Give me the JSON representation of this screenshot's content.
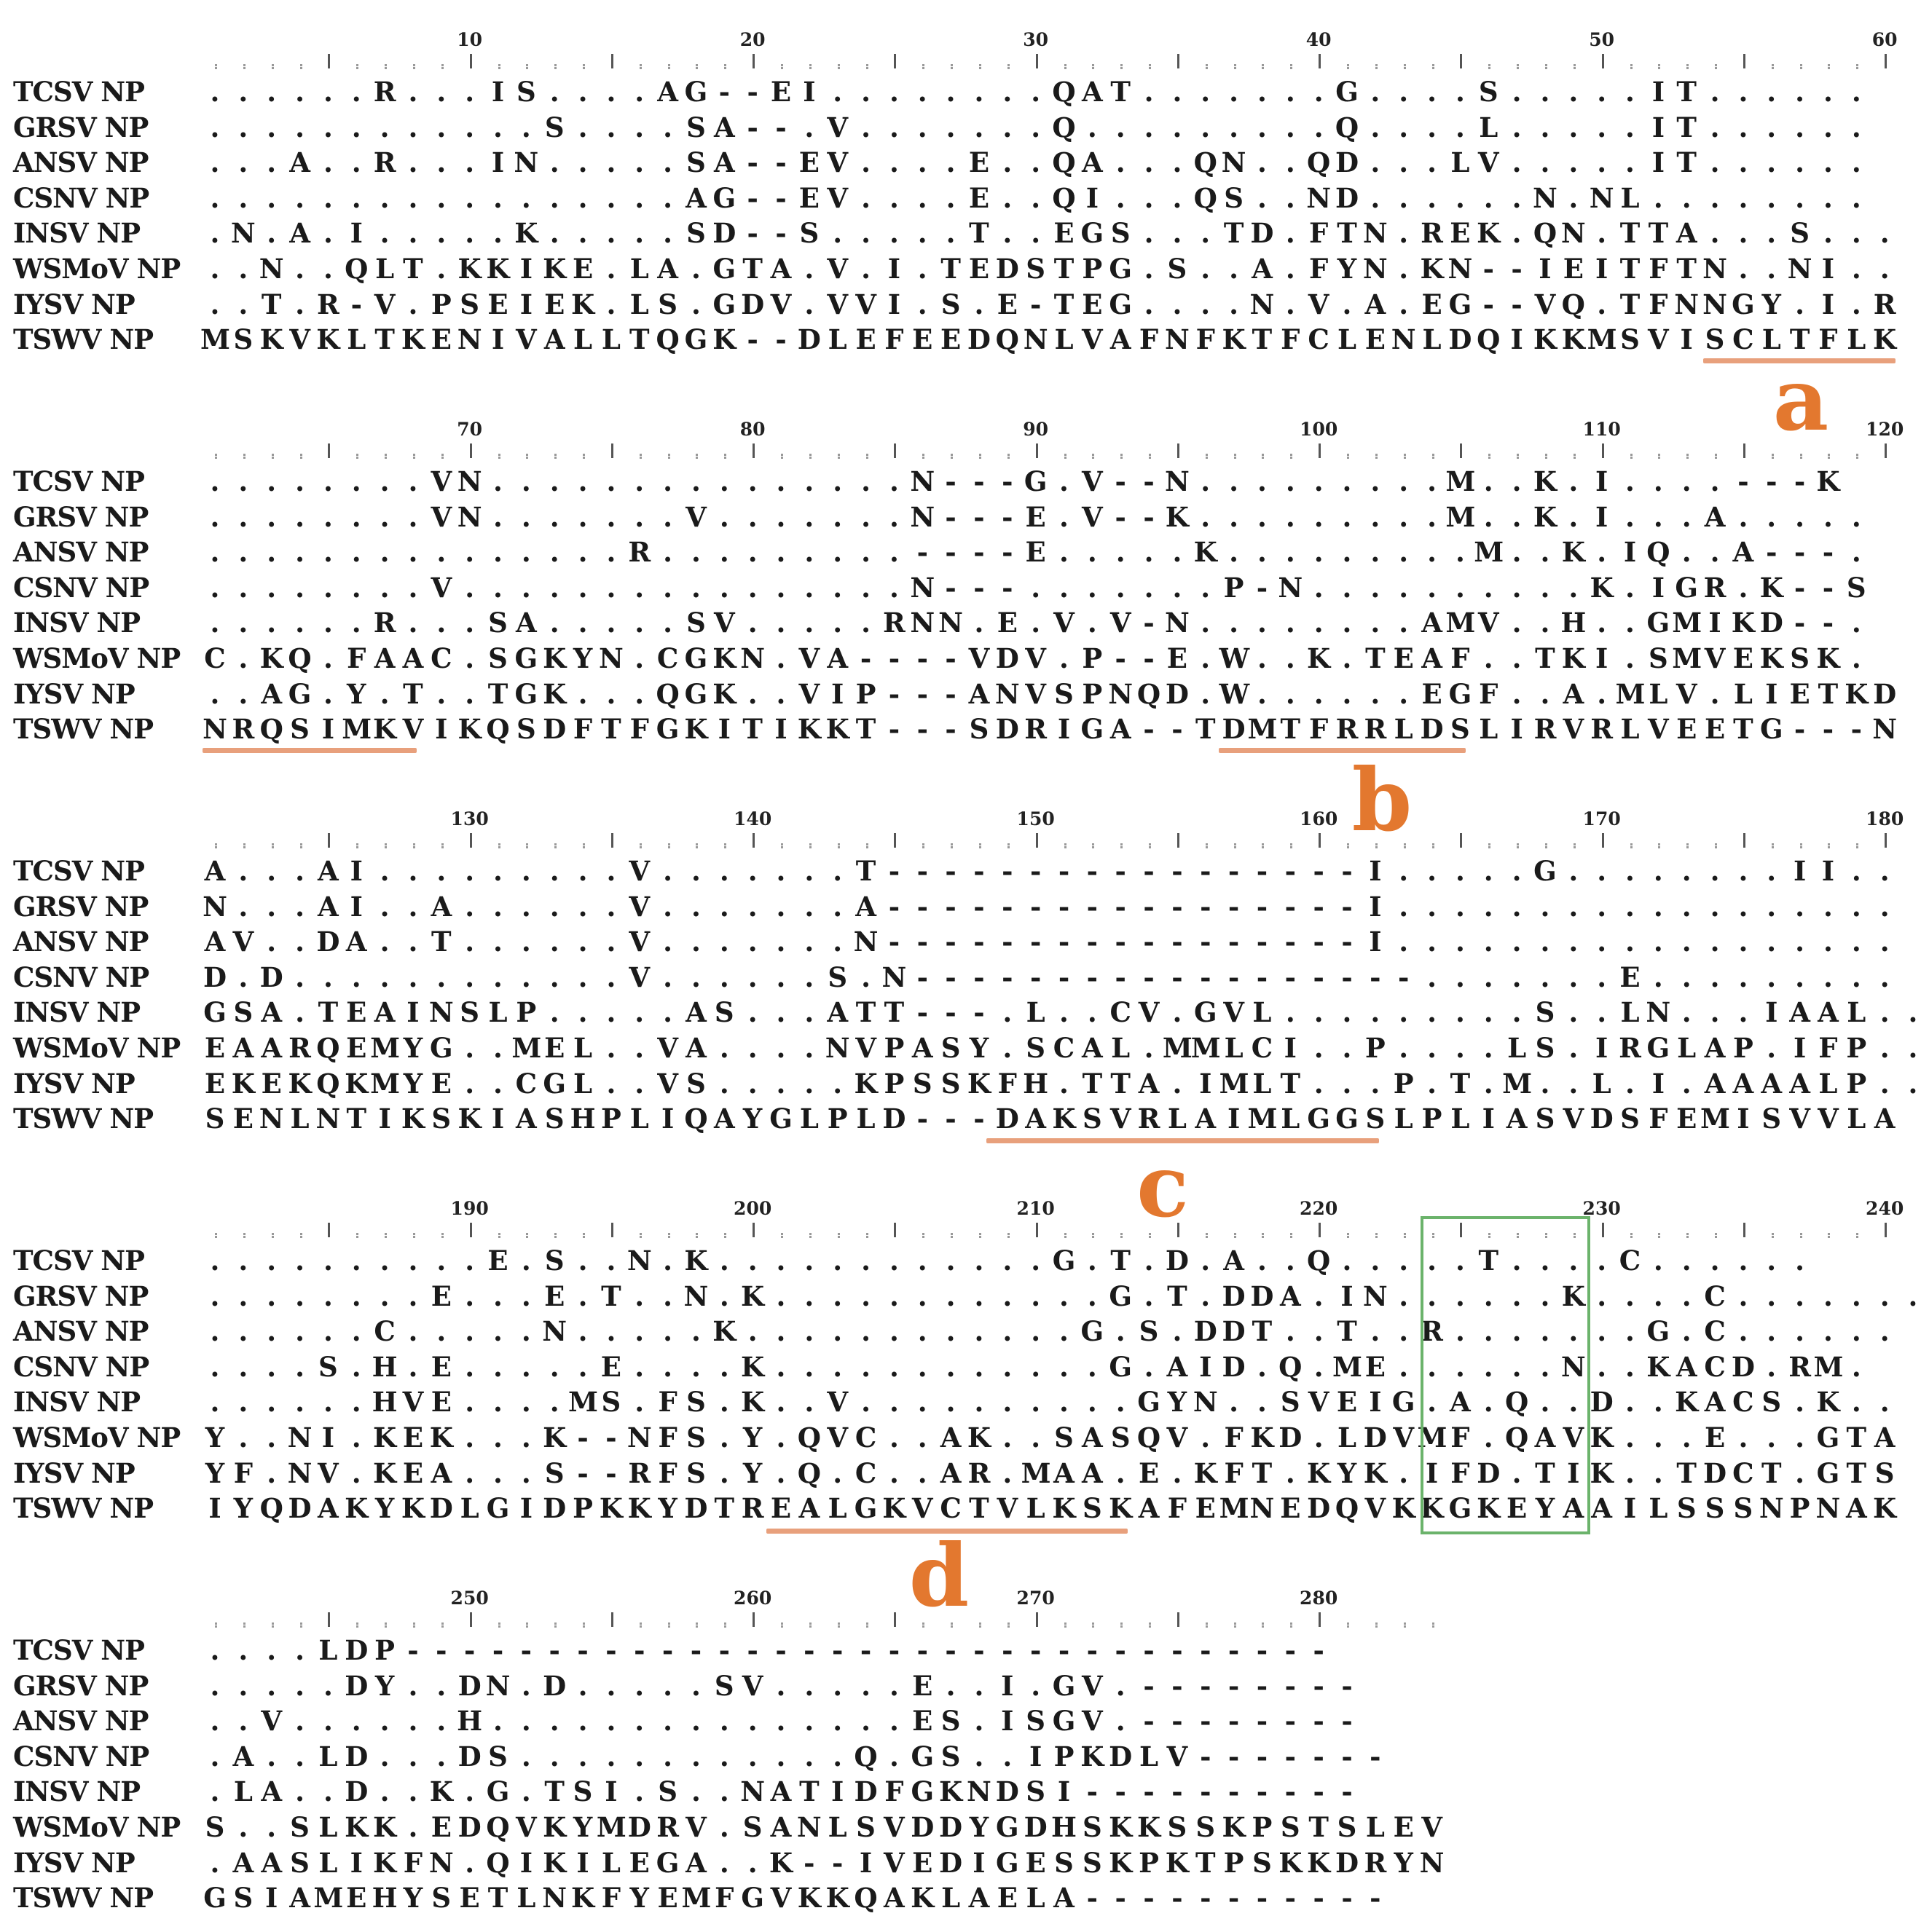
{
  "blocks": [
    {
      "ruler_numbers": [
        "10",
        "20",
        "30",
        "40",
        "50",
        "60"
      ],
      "rows": [
        {
          "label": "TCSV NP",
          "seq": "......R...IS....AG--EI........QAT.......G....S.....IT......"
        },
        {
          "label": "GRSV NP",
          "seq": "............S....SA--.V.......Q.........Q....L.....IT......"
        },
        {
          "label": "ANSV NP",
          "seq": "...A..R...IN.....SA--EV....E..QA...QN..QD...LV.....IT......"
        },
        {
          "label": "CSNV NP",
          "seq": ".................AG--EV....E..QI...QS..ND......N.NL........"
        },
        {
          "label": "INSV NP",
          "seq": ".N.A.I.....K.....SD--S.....T..EGS...TD.FTN.REK.QN.TTA...S..."
        },
        {
          "label": "WSMoV NP",
          "seq": "..N..QLT.KKIKE.LA.GTA.V.I.TEDSTPG.S..A.FYN.KN--IEITFTN..NI.."
        },
        {
          "label": "IYSV NP",
          "seq": "..T.R-V.PSEIEK.LS.GDV.VVI.S.E-TEG....N.V.A.EG--VQ.TFNNGY.I.R"
        },
        {
          "label": "TSWV NP",
          "seq": "MSKVKLTKENIVALLTQGK--DLEFEEDQNLVAFNFKTFCLENLDQIKKMSVISCLTFLK"
        }
      ],
      "motif": {
        "letter": "a"
      }
    },
    {
      "ruler_numbers": [
        "70",
        "80",
        "90",
        "100",
        "110",
        "120"
      ],
      "rows": [
        {
          "label": "TCSV NP",
          "seq": "........VN...............N---G.V--N.........M..K.I....---K"
        },
        {
          "label": "GRSV NP",
          "seq": "........VN.......V.......N---E.V--K.........M..K.I...A....."
        },
        {
          "label": "ANSV NP",
          "seq": "...............R.........----E.....K.........M..K.IQ..A---."
        },
        {
          "label": "CSNV NP",
          "seq": "........V................N---.......P-N..........K.IGR.K--S"
        },
        {
          "label": "INSV NP",
          "seq": "......R...SA.....SV.....RNN.E.V.V-N........AMV..H..GMIKD--."
        },
        {
          "label": "WSMoV NP",
          "seq": "C.KQ.FAAC.SGKYN.CGKN.VA----VDV.P--E.W..K.TEAF..TKI.SMVEKSK."
        },
        {
          "label": "IYSV NP",
          "seq": "..AG.Y.T..TGK...QGK..VIP---ANVSPNQD.W......EGF..A.MLV.LIETKD"
        },
        {
          "label": "TSWV NP",
          "seq": "NRQSIMKVIKQSDFTFGKITIKKT---SDRIGA--TDMTFRRLDSLIRVRLVEETG---N"
        }
      ],
      "motif": {
        "letter": "b"
      }
    },
    {
      "ruler_numbers": [
        "130",
        "140",
        "150",
        "160",
        "170",
        "180"
      ],
      "rows": [
        {
          "label": "TCSV NP",
          "seq": "A...AI.........V.......T-----------------I.....G........II.."
        },
        {
          "label": "GRSV NP",
          "seq": "N...AI..A......V.......A-----------------I.................."
        },
        {
          "label": "ANSV NP",
          "seq": "AV..DA..T......V.......N-----------------I.................."
        },
        {
          "label": "CSNV NP",
          "seq": "D.D............V......S.N------------------.......E........."
        },
        {
          "label": "INSV NP",
          "seq": "GSA.TEAINSLP.....AS...ATT---.L..CV.GVL.........S..LN...IAAL..."
        },
        {
          "label": "WSMoV NP",
          "seq": "EAARQEMYG..MEL..VA....NVPASY.SCAL.MMLCI..P....LS.IRGLAP.IFP.."
        },
        {
          "label": "IYSV NP",
          "seq": "EKEKQKMYE..CGL..VS.....KPSSKFH.TTA.IMLT...P.T.M..L.I.AAAALP.."
        },
        {
          "label": "TSWV NP",
          "seq": "SENLNTIKSKIASHPLIQAYGLPLD---DAKSVRLAIMLGGSLPLIASVDSFEMISVVLA"
        }
      ],
      "motif": {
        "letter": "c"
      }
    },
    {
      "ruler_numbers": [
        "190",
        "200",
        "210",
        "220",
        "230",
        "240"
      ],
      "rows": [
        {
          "label": "TCSV NP",
          "seq": "..........E.S..N.K............G.T.D.A..Q.....T....C......"
        },
        {
          "label": "GRSV NP",
          "seq": "........E...E.T..N.K............G.T.DDA.IN......K....C......."
        },
        {
          "label": "ANSV NP",
          "seq": "......C.....N.....K............G.S.DDT..T..R.......G.C......"
        },
        {
          "label": "CSNV NP",
          "seq": "....S.H.E.....E....K............G.AID.Q.ME......N..KACD.RM."
        },
        {
          "label": "INSV NP",
          "seq": "......HVE....MS.FS.K..V..........GYN..SVEIG.A.Q..D..KACS.K.."
        },
        {
          "label": "WSMoV NP",
          "seq": "Y..NI.KEK...K--NFS.Y.QVC..AK..SASQV.FKD.LDVMF.QAVK...E...GTA"
        },
        {
          "label": "IYSV NP",
          "seq": "YF.NV.KEA...S--RFS.Y.Q.C..AR.MAA.E.KFT.KYK.IFD.TIK..TDCT.GTS"
        },
        {
          "label": "TSWV NP",
          "seq": "IYQDAKYKDLGIDPKKYDTREALGKVCTVLKSKAFEMNEDQVKKGKEYAAILSSSNPNAK"
        }
      ],
      "motif": {
        "letter": "d"
      }
    },
    {
      "ruler_numbers": [
        "250",
        "260",
        "270",
        "280"
      ],
      "rows": [
        {
          "label": "TCSV NP",
          "seq": "....LDP---------------------------------"
        },
        {
          "label": "GRSV NP",
          "seq": ".....DY..DN.D.....SV.....E..I.GV.--------"
        },
        {
          "label": "ANSV NP",
          "seq": "..V......H...............ES.ISGV.--------"
        },
        {
          "label": "CSNV NP",
          "seq": ".A..LD...DS............Q.GS..IPKDLV-------"
        },
        {
          "label": "INSV NP",
          "seq": ".LA..D..K.G.TSI.S..NATIDFGKNDSI----------"
        },
        {
          "label": "WSMoV NP",
          "seq": "S..SLKK.EDQVKYMDRV.SANLSVDDYGDHSKKSSKPSTSLEV"
        },
        {
          "label": "IYSV NP",
          "seq": ".AASLIKFN.QIKILEGA..K--IVEDIGESSKPKTPSKKDRYN"
        },
        {
          "label": "TSWV NP",
          "seq": "GSIAMEHYSETLNKFYEMFGVKKQAKLAELA-----------"
        }
      ]
    }
  ]
}
